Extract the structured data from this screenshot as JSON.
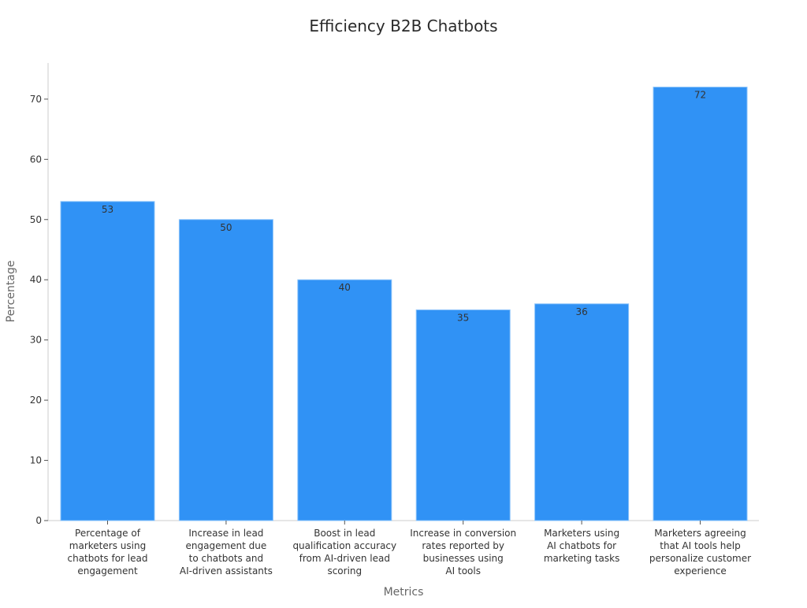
{
  "chart_data": {
    "type": "bar",
    "title": "Efficiency B2B Chatbots",
    "xlabel": "Metrics",
    "ylabel": "Percentage",
    "ylim": [
      0,
      76
    ],
    "yticks": [
      0,
      10,
      20,
      30,
      40,
      50,
      60,
      70
    ],
    "categories": [
      [
        "Percentage of",
        "marketers using",
        "chatbots for lead",
        "engagement"
      ],
      [
        "Increase in lead",
        "engagement due",
        "to chatbots and",
        "AI-driven assistants"
      ],
      [
        "Boost in lead",
        "qualification accuracy",
        "from AI-driven lead",
        "scoring"
      ],
      [
        "Increase in conversion",
        "rates reported by",
        "businesses using",
        "AI tools"
      ],
      [
        "Marketers using",
        "AI chatbots for",
        "marketing tasks"
      ],
      [
        "Marketers agreeing",
        "that AI tools help",
        "personalize customer",
        "experience"
      ]
    ],
    "values": [
      53,
      50,
      40,
      35,
      36,
      72
    ],
    "bar_color": "#3092f5",
    "grid": false,
    "legend": "none"
  }
}
